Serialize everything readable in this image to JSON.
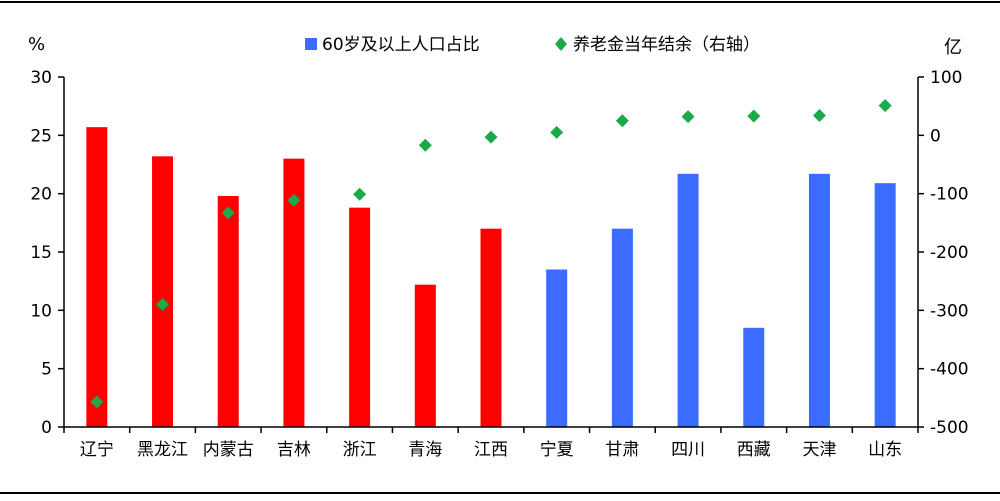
{
  "chart_data": {
    "type": "bar",
    "categories": [
      "辽宁",
      "黑龙江",
      "内蒙古",
      "吉林",
      "浙江",
      "青海",
      "江西",
      "宁夏",
      "甘肃",
      "四川",
      "西藏",
      "天津",
      "山东"
    ],
    "series": [
      {
        "name": "60岁及以上人口占比",
        "type": "bar",
        "axis": "left",
        "values": [
          25.7,
          23.2,
          19.8,
          23.0,
          18.8,
          12.2,
          17.0,
          13.5,
          17.0,
          21.7,
          8.5,
          21.7,
          20.9
        ],
        "colors": [
          "#ff0000",
          "#ff0000",
          "#ff0000",
          "#ff0000",
          "#ff0000",
          "#ff0000",
          "#ff0000",
          "#3b6cff",
          "#3b6cff",
          "#3b6cff",
          "#3b6cff",
          "#3b6cff",
          "#3b6cff"
        ]
      },
      {
        "name": "养老金当年结余（右轴）",
        "type": "scatter",
        "axis": "right",
        "values": [
          -457,
          -290,
          -133,
          -111,
          -101,
          -17,
          -3,
          5,
          25,
          32,
          33,
          34,
          51
        ],
        "color": "#1aaa4a"
      }
    ],
    "y_left": {
      "label": "%",
      "min": 0,
      "max": 30,
      "ticks": [
        0,
        5,
        10,
        15,
        20,
        25,
        30
      ]
    },
    "y_right": {
      "label": "亿",
      "min": -500,
      "max": 100,
      "ticks": [
        -500,
        -400,
        -300,
        -200,
        -100,
        0,
        100
      ]
    },
    "legend_position": "top",
    "grid": false
  },
  "colors": {
    "red": "#ff0000",
    "blue": "#3b6cff",
    "green": "#1aaa4a"
  }
}
